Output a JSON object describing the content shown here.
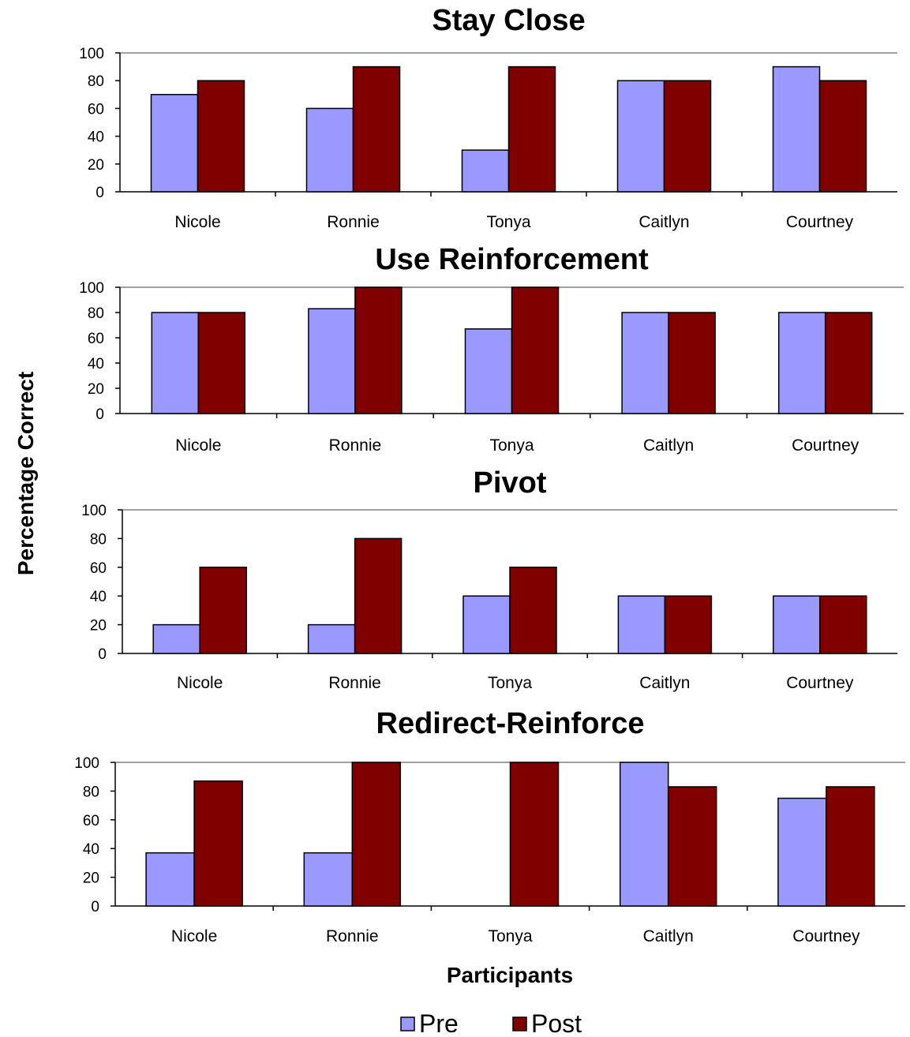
{
  "figure": {
    "ylabel": "Percentage Correct",
    "xlabel": "Participants"
  },
  "legend": [
    {
      "label": "Pre",
      "color": "#9999ff"
    },
    {
      "label": "Post",
      "color": "#800000"
    }
  ],
  "chart_data": [
    {
      "type": "bar",
      "title": "Stay Close",
      "categories": [
        "Nicole",
        "Ronnie",
        "Tonya",
        "Caitlyn",
        "Courtney"
      ],
      "ylim": [
        0,
        100
      ],
      "yticks": [
        "0",
        "20",
        "40",
        "60",
        "80",
        "100"
      ],
      "grid": false,
      "series": [
        {
          "name": "Pre",
          "color": "#9999ff",
          "values": [
            70,
            60,
            30,
            80,
            90
          ]
        },
        {
          "name": "Post",
          "color": "#800000",
          "values": [
            80,
            90,
            90,
            80,
            80
          ]
        }
      ]
    },
    {
      "type": "bar",
      "title": "Use Reinforcement",
      "categories": [
        "Nicole",
        "Ronnie",
        "Tonya",
        "Caitlyn",
        "Courtney"
      ],
      "ylim": [
        0,
        100
      ],
      "yticks": [
        "0",
        "20",
        "40",
        "60",
        "80",
        "100"
      ],
      "grid": false,
      "series": [
        {
          "name": "Pre",
          "color": "#9999ff",
          "values": [
            80,
            83,
            67,
            80,
            80
          ]
        },
        {
          "name": "Post",
          "color": "#800000",
          "values": [
            80,
            100,
            100,
            80,
            80
          ]
        }
      ]
    },
    {
      "type": "bar",
      "title": "Pivot",
      "categories": [
        "Nicole",
        "Ronnie",
        "Tonya",
        "Caitlyn",
        "Courtney"
      ],
      "ylim": [
        0,
        100
      ],
      "yticks": [
        "0",
        "20",
        "40",
        "60",
        "80",
        "100"
      ],
      "grid": false,
      "series": [
        {
          "name": "Pre",
          "color": "#9999ff",
          "values": [
            20,
            20,
            40,
            40,
            40
          ]
        },
        {
          "name": "Post",
          "color": "#800000",
          "values": [
            60,
            80,
            60,
            40,
            40
          ]
        }
      ]
    },
    {
      "type": "bar",
      "title": "Redirect-Reinforce",
      "categories": [
        "Nicole",
        "Ronnie",
        "Tonya",
        "Caitlyn",
        "Courtney"
      ],
      "ylim": [
        0,
        100
      ],
      "yticks": [
        "0",
        "20",
        "40",
        "60",
        "80",
        "100"
      ],
      "grid": false,
      "series": [
        {
          "name": "Pre",
          "color": "#9999ff",
          "values": [
            37,
            37,
            0,
            100,
            75
          ]
        },
        {
          "name": "Post",
          "color": "#800000",
          "values": [
            87,
            100,
            100,
            83,
            83
          ]
        }
      ]
    }
  ]
}
